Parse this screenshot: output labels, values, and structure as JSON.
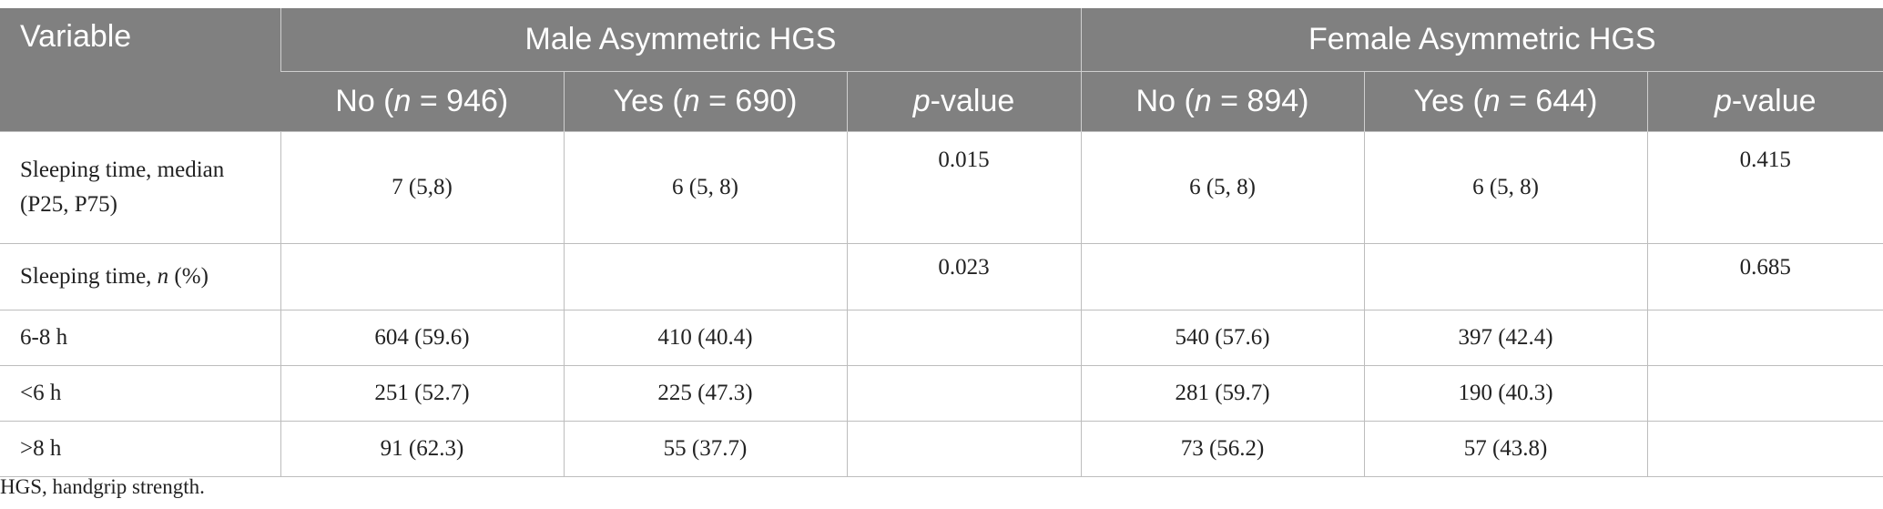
{
  "header": {
    "variable": "Variable",
    "male_group": "Male Asymmetric HGS",
    "female_group": "Female Asymmetric HGS",
    "male_no": {
      "prefix": "No (",
      "n": "n",
      "suffix": " = 946)"
    },
    "male_yes": {
      "prefix": "Yes (",
      "n": "n",
      "suffix": " = 690)"
    },
    "female_no": {
      "prefix": "No (",
      "n": "n",
      "suffix": " = 894)"
    },
    "female_yes": {
      "prefix": "Yes (",
      "n": "n",
      "suffix": " = 644)"
    },
    "pvalue": {
      "p": "p",
      "suffix": "-value"
    }
  },
  "rows": [
    {
      "variable_line1": "Sleeping time, median",
      "variable_line2": "(P25, P75)",
      "male_no": "7 (5,8)",
      "male_yes": "6 (5, 8)",
      "male_p": "0.015",
      "female_no": "6 (5, 8)",
      "female_yes": "6 (5, 8)",
      "female_p": "0.415"
    },
    {
      "variable_prefix": "Sleeping time, ",
      "variable_n": "n",
      "variable_suffix": " (%)",
      "male_no": "",
      "male_yes": "",
      "male_p": "0.023",
      "female_no": "",
      "female_yes": "",
      "female_p": "0.685"
    },
    {
      "variable": "6-8 h",
      "male_no": "604 (59.6)",
      "male_yes": "410 (40.4)",
      "male_p": "",
      "female_no": "540 (57.6)",
      "female_yes": "397 (42.4)",
      "female_p": ""
    },
    {
      "variable": "<6 h",
      "male_no": "251 (52.7)",
      "male_yes": "225 (47.3)",
      "male_p": "",
      "female_no": "281 (59.7)",
      "female_yes": "190 (40.3)",
      "female_p": ""
    },
    {
      "variable": ">8 h",
      "male_no": "91 (62.3)",
      "male_yes": "55 (37.7)",
      "male_p": "",
      "female_no": "73 (56.2)",
      "female_yes": "57 (43.8)",
      "female_p": ""
    }
  ],
  "footnote": "HGS, handgrip strength."
}
